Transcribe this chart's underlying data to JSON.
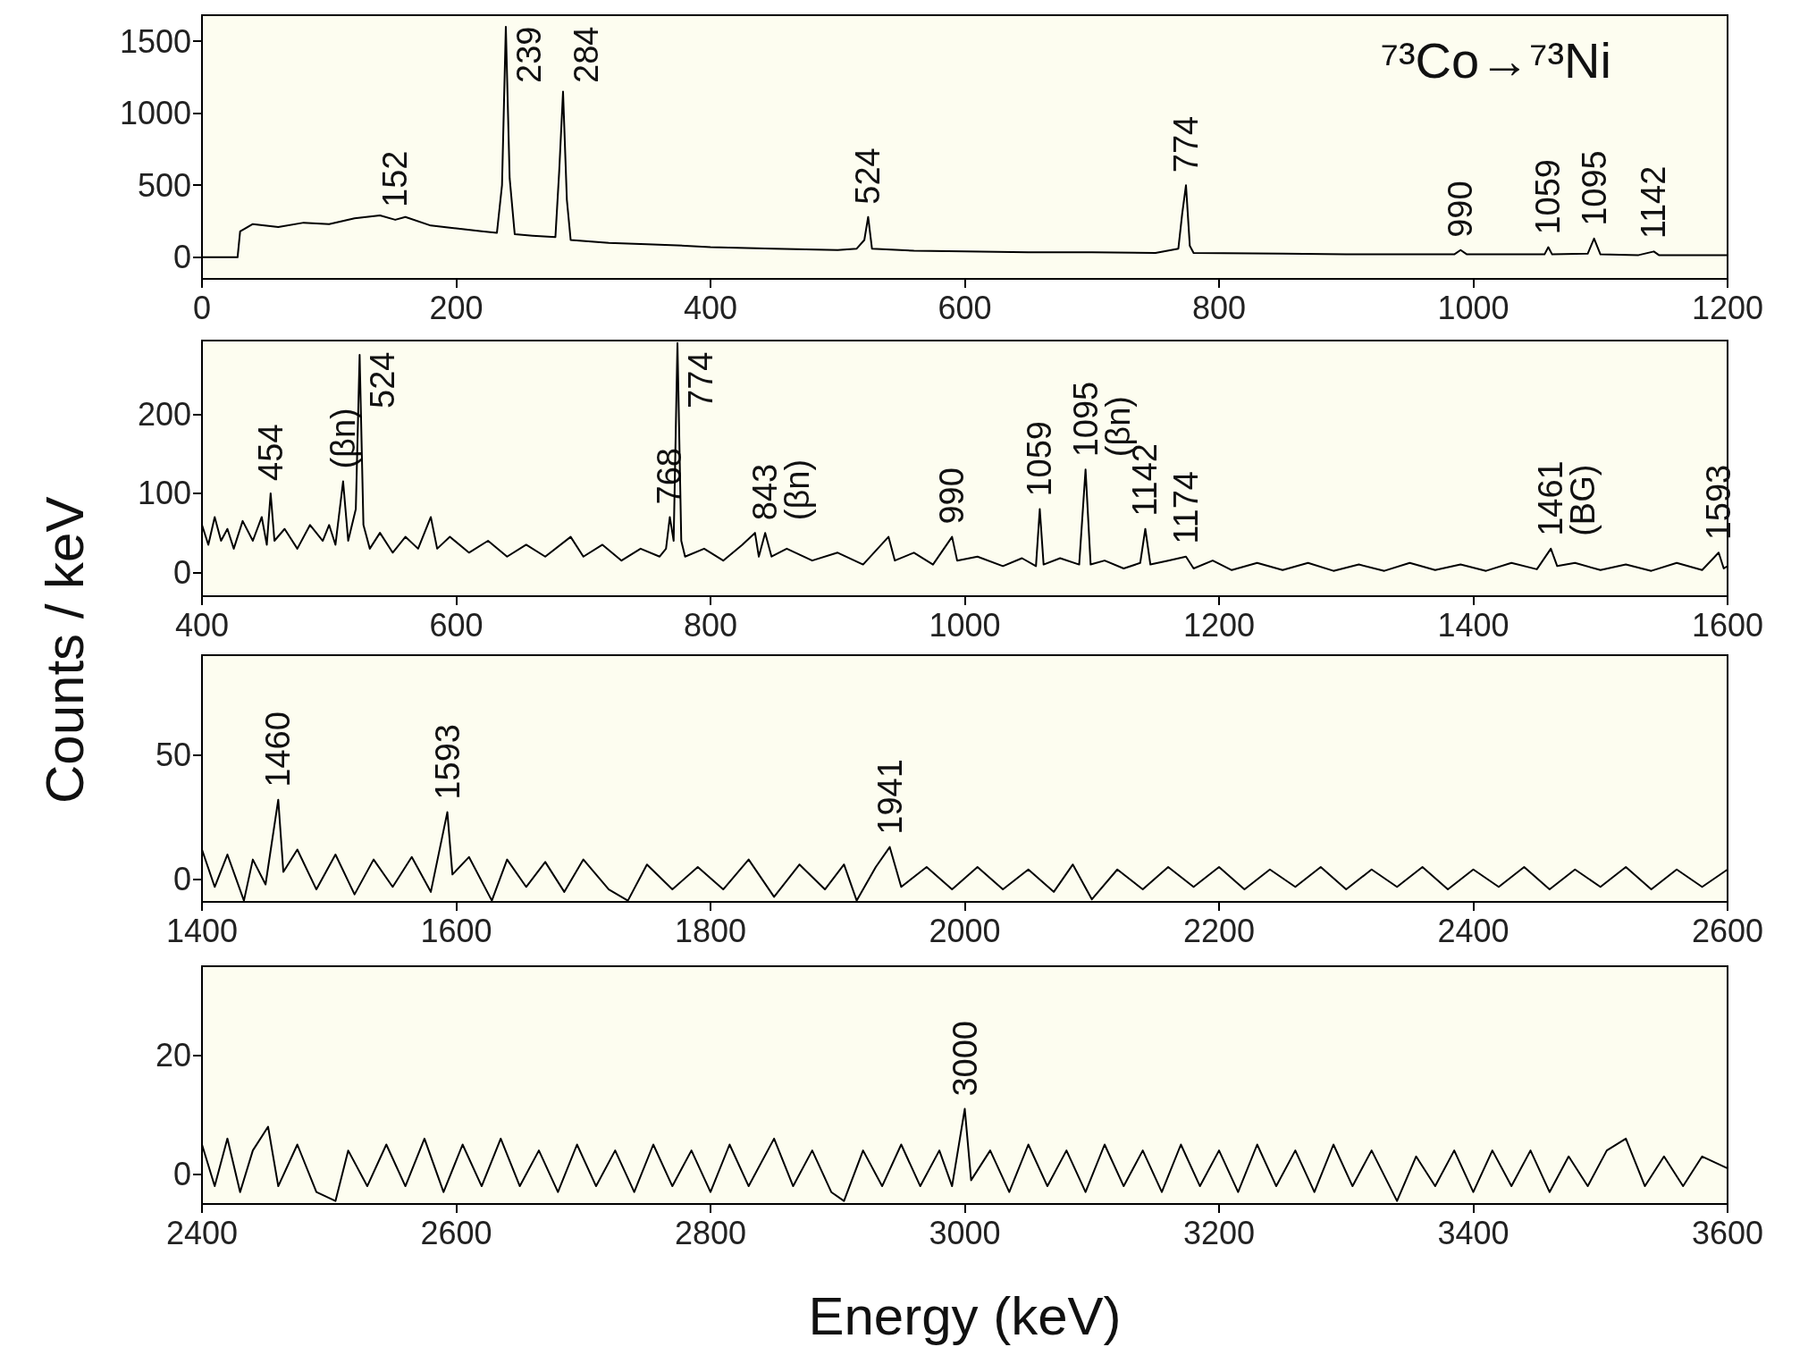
{
  "chart_data": [
    {
      "type": "line",
      "xlim": [
        0,
        1200
      ],
      "xticks": [
        0,
        200,
        400,
        600,
        800,
        1000,
        1200
      ],
      "ylim": [
        -150,
        1680
      ],
      "yticks": [
        0,
        500,
        1000,
        1500
      ],
      "series": [
        {
          "color": "#000000",
          "x": [
            0,
            28,
            30,
            40,
            60,
            80,
            100,
            120,
            140,
            152,
            160,
            180,
            200,
            220,
            232,
            236,
            239,
            242,
            246,
            260,
            278,
            281,
            284,
            287,
            290,
            320,
            350,
            380,
            400,
            450,
            500,
            515,
            521,
            524,
            527,
            560,
            600,
            650,
            700,
            750,
            768,
            771,
            774,
            777,
            780,
            850,
            900,
            950,
            985,
            990,
            995,
            1040,
            1056,
            1059,
            1062,
            1090,
            1095,
            1100,
            1130,
            1142,
            1146,
            1200
          ],
          "values": [
            0,
            0,
            180,
            230,
            210,
            240,
            230,
            270,
            290,
            260,
            280,
            220,
            200,
            180,
            170,
            500,
            1600,
            550,
            160,
            150,
            140,
            600,
            1150,
            400,
            120,
            100,
            90,
            80,
            70,
            60,
            50,
            60,
            120,
            280,
            60,
            45,
            40,
            35,
            35,
            30,
            60,
            300,
            500,
            80,
            30,
            25,
            20,
            20,
            20,
            50,
            20,
            20,
            20,
            70,
            20,
            25,
            130,
            20,
            15,
            40,
            15,
            15
          ]
        }
      ],
      "annotations": [
        "⁷³Co→⁷³Ni",
        {
          "text": "152",
          "x": 152,
          "y": 260
        },
        {
          "text": "239",
          "x": 239,
          "y": 1600
        },
        {
          "text": "284",
          "x": 284,
          "y": 1150
        },
        {
          "text": "524",
          "x": 524,
          "y": 280
        },
        {
          "text": "774",
          "x": 774,
          "y": 500
        },
        {
          "text": "990",
          "x": 990,
          "y": 50
        },
        {
          "text": "1059",
          "x": 1059,
          "y": 70
        },
        {
          "text": "1095",
          "x": 1095,
          "y": 130
        },
        {
          "text": "1142",
          "x": 1142,
          "y": 40
        }
      ]
    },
    {
      "type": "line",
      "ylabel": "Counts / keV",
      "xlim": [
        400,
        1600
      ],
      "xticks": [
        400,
        600,
        800,
        1000,
        1200,
        1400,
        1600
      ],
      "ylim": [
        -30,
        293
      ],
      "yticks": [
        0,
        100,
        200
      ],
      "series": [
        {
          "color": "#000000",
          "x": [
            400,
            405,
            410,
            415,
            420,
            425,
            432,
            440,
            447,
            451,
            454,
            457,
            465,
            475,
            485,
            495,
            500,
            505,
            511,
            515,
            521,
            524,
            527,
            532,
            540,
            550,
            560,
            570,
            580,
            585,
            595,
            610,
            625,
            640,
            655,
            670,
            690,
            700,
            715,
            730,
            745,
            760,
            765,
            768,
            771,
            774,
            777,
            780,
            795,
            810,
            825,
            835,
            838,
            843,
            848,
            860,
            880,
            900,
            920,
            940,
            945,
            960,
            975,
            990,
            994,
            1010,
            1030,
            1045,
            1056,
            1059,
            1062,
            1075,
            1090,
            1095,
            1099,
            1110,
            1125,
            1138,
            1142,
            1146,
            1160,
            1174,
            1180,
            1195,
            1210,
            1230,
            1250,
            1270,
            1290,
            1310,
            1330,
            1350,
            1370,
            1390,
            1410,
            1430,
            1450,
            1461,
            1466,
            1480,
            1500,
            1520,
            1540,
            1560,
            1580,
            1593,
            1597,
            1600
          ],
          "values": [
            60,
            35,
            70,
            40,
            55,
            30,
            65,
            40,
            70,
            35,
            100,
            40,
            55,
            30,
            60,
            40,
            60,
            35,
            115,
            40,
            80,
            275,
            60,
            30,
            50,
            25,
            45,
            30,
            70,
            30,
            45,
            25,
            40,
            20,
            35,
            20,
            45,
            20,
            35,
            15,
            30,
            20,
            30,
            70,
            40,
            290,
            40,
            20,
            30,
            15,
            35,
            50,
            20,
            50,
            20,
            30,
            15,
            25,
            10,
            45,
            15,
            25,
            10,
            45,
            15,
            20,
            8,
            18,
            8,
            80,
            10,
            18,
            10,
            130,
            10,
            15,
            5,
            12,
            55,
            10,
            15,
            20,
            5,
            15,
            3,
            12,
            3,
            12,
            2,
            10,
            2,
            12,
            3,
            10,
            2,
            12,
            4,
            30,
            8,
            12,
            3,
            10,
            2,
            12,
            3,
            25,
            5,
            8
          ]
        }
      ],
      "annotations": [
        {
          "text": "454",
          "x": 454,
          "y": 100
        },
        {
          "text": "(βn)",
          "x": 511,
          "y": 115
        },
        {
          "text": "524",
          "x": 524,
          "y": 275
        },
        {
          "text": "768",
          "x": 768,
          "y": 70
        },
        {
          "text": "774",
          "x": 774,
          "y": 290
        },
        {
          "text": "843",
          "x": 843,
          "y": 50
        },
        {
          "text": "(βn)",
          "x": 843,
          "y": 50
        },
        {
          "text": "990",
          "x": 990,
          "y": 45
        },
        {
          "text": "1059",
          "x": 1059,
          "y": 80
        },
        {
          "text": "1095",
          "x": 1095,
          "y": 130
        },
        {
          "text": "(βn)",
          "x": 1095,
          "y": 130
        },
        {
          "text": "1142",
          "x": 1142,
          "y": 55
        },
        {
          "text": "1174",
          "x": 1174,
          "y": 20
        },
        {
          "text": "1461",
          "x": 1461,
          "y": 30
        },
        {
          "text": "(BG)",
          "x": 1461,
          "y": 30
        },
        {
          "text": "1593",
          "x": 1593,
          "y": 25
        }
      ]
    },
    {
      "type": "line",
      "xlim": [
        1400,
        2600
      ],
      "xticks": [
        1400,
        1600,
        1800,
        2000,
        2200,
        2400,
        2600
      ],
      "ylim": [
        -9,
        90
      ],
      "yticks": [
        0,
        50
      ],
      "series": [
        {
          "color": "#000000",
          "x": [
            1400,
            1410,
            1420,
            1433,
            1440,
            1450,
            1460,
            1464,
            1475,
            1490,
            1505,
            1520,
            1535,
            1550,
            1565,
            1580,
            1593,
            1597,
            1610,
            1628,
            1640,
            1655,
            1670,
            1685,
            1700,
            1720,
            1735,
            1750,
            1770,
            1790,
            1810,
            1830,
            1850,
            1870,
            1890,
            1905,
            1915,
            1930,
            1941,
            1950,
            1970,
            1990,
            2010,
            2030,
            2050,
            2070,
            2085,
            2100,
            2120,
            2140,
            2160,
            2180,
            2200,
            2220,
            2240,
            2260,
            2280,
            2300,
            2320,
            2340,
            2360,
            2380,
            2400,
            2420,
            2440,
            2460,
            2480,
            2500,
            2520,
            2540,
            2560,
            2580,
            2600
          ],
          "values": [
            12,
            -3,
            10,
            -8.5,
            8,
            -2,
            32,
            3,
            12,
            -4,
            10,
            -6,
            8,
            -3,
            9,
            -5,
            27,
            2,
            9,
            -8.5,
            8,
            -3,
            7,
            -5,
            8,
            -4,
            -8.5,
            6,
            -4,
            5,
            -4,
            8,
            -7,
            6,
            -4,
            6,
            -8.5,
            5,
            13,
            -3,
            5,
            -4,
            5,
            -4,
            4,
            -5,
            6,
            -8,
            4,
            -4,
            5,
            -3,
            5,
            -4,
            4,
            -3,
            5,
            -4,
            4,
            -3,
            5,
            -4,
            4,
            -3,
            5,
            -4,
            4,
            -3,
            5,
            -4,
            4,
            -3,
            4
          ]
        }
      ],
      "annotations": [
        {
          "text": "1460",
          "x": 1460,
          "y": 32
        },
        {
          "text": "1593",
          "x": 1593,
          "y": 27
        },
        {
          "text": "1941",
          "x": 1941,
          "y": 13
        }
      ]
    },
    {
      "type": "line",
      "xlabel": "Energy (keV)",
      "xlim": [
        2400,
        3600
      ],
      "xticks": [
        2400,
        2600,
        2800,
        3000,
        3200,
        3400,
        3600
      ],
      "ylim": [
        -5,
        35
      ],
      "yticks": [
        0,
        20
      ],
      "series": [
        {
          "color": "#000000",
          "x": [
            2400,
            2410,
            2420,
            2430,
            2440,
            2452,
            2460,
            2475,
            2490,
            2505,
            2515,
            2530,
            2545,
            2560,
            2575,
            2590,
            2605,
            2620,
            2635,
            2650,
            2665,
            2680,
            2695,
            2710,
            2725,
            2740,
            2755,
            2770,
            2785,
            2800,
            2815,
            2830,
            2850,
            2865,
            2880,
            2895,
            2905,
            2920,
            2935,
            2950,
            2965,
            2980,
            2990,
            3000,
            3005,
            3020,
            3035,
            3050,
            3065,
            3080,
            3095,
            3110,
            3125,
            3140,
            3155,
            3170,
            3185,
            3200,
            3215,
            3230,
            3245,
            3260,
            3275,
            3290,
            3305,
            3320,
            3340,
            3355,
            3370,
            3385,
            3400,
            3415,
            3430,
            3445,
            3460,
            3475,
            3490,
            3505,
            3520,
            3535,
            3550,
            3565,
            3580,
            3600
          ],
          "values": [
            5,
            -2,
            6,
            -3,
            4,
            8,
            -2,
            5,
            -3,
            -4.5,
            4,
            -2,
            5,
            -2,
            6,
            -3,
            5,
            -2,
            6,
            -2,
            4,
            -3,
            5,
            -2,
            4,
            -3,
            5,
            -2,
            4,
            -3,
            5,
            -2,
            6,
            -2,
            4,
            -3,
            -4.5,
            4,
            -2,
            5,
            -2,
            4,
            -2,
            11,
            -1,
            4,
            -3,
            5,
            -2,
            4,
            -3,
            5,
            -2,
            4,
            -3,
            5,
            -2,
            4,
            -3,
            5,
            -2,
            4,
            -3,
            5,
            -2,
            4,
            -4.5,
            3,
            -2,
            4,
            -3,
            4,
            -2,
            4,
            -3,
            3,
            -2,
            4,
            6,
            -2,
            3,
            -2,
            3,
            1
          ]
        }
      ],
      "annotations": [
        {
          "text": "3000",
          "x": 3000,
          "y": 11
        }
      ]
    }
  ]
}
